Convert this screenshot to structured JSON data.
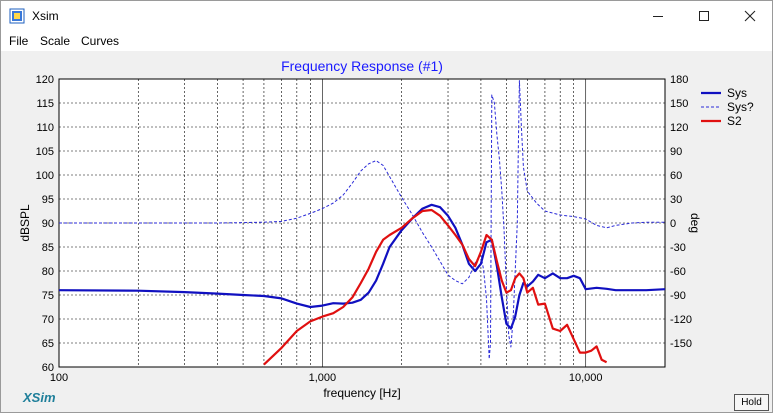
{
  "window": {
    "title": "Xsim",
    "icon": "xsim-app-icon"
  },
  "menu": [
    "File",
    "Scale",
    "Curves"
  ],
  "logo": "XSim",
  "hold_label": "Hold",
  "chart_data": {
    "type": "line",
    "title": "Frequency Response (#1)",
    "xlabel": "frequency [Hz]",
    "ylabel": "dBSPL",
    "y2label": "deg",
    "xscale": "log",
    "xlim": [
      100,
      20000
    ],
    "ylim": [
      60,
      120
    ],
    "y2lim": [
      -180,
      180
    ],
    "grid": true,
    "legend": "top-right",
    "x_tick_labels": [
      {
        "x": 100,
        "label": "100"
      },
      {
        "x": 1000,
        "label": "1,000"
      },
      {
        "x": 10000,
        "label": "10,000"
      }
    ],
    "y_ticks": [
      60,
      65,
      70,
      75,
      80,
      85,
      90,
      95,
      100,
      105,
      110,
      115,
      120
    ],
    "y2_ticks": [
      -150,
      -120,
      -90,
      -60,
      -30,
      0,
      30,
      60,
      90,
      120,
      150,
      180
    ],
    "colors": {
      "title": "#1a1aff",
      "sys": "#1010c0",
      "phase": "#2a2ad8",
      "s2": "#e01010"
    },
    "series": [
      {
        "name": "Sys",
        "axis": "left",
        "style": "solid-bold",
        "x": [
          100,
          200,
          300,
          400,
          500,
          600,
          700,
          800,
          900,
          1000,
          1100,
          1200,
          1300,
          1400,
          1500,
          1600,
          1700,
          1800,
          2000,
          2200,
          2400,
          2600,
          2800,
          3000,
          3200,
          3400,
          3600,
          3800,
          4000,
          4200,
          4400,
          4600,
          4800,
          5000,
          5200,
          5400,
          5600,
          5800,
          6000,
          6300,
          6600,
          7000,
          7500,
          8000,
          8500,
          9000,
          9500,
          10000,
          11000,
          12000,
          13000,
          15000,
          17000,
          20000
        ],
        "y": [
          76,
          75.9,
          75.6,
          75.3,
          75,
          74.8,
          74.3,
          73.2,
          72.5,
          72.8,
          73.3,
          73.2,
          73.4,
          74,
          75.5,
          78,
          81.5,
          85,
          88.5,
          91,
          93,
          93.8,
          93.3,
          91.5,
          89,
          85.5,
          81.5,
          80,
          81.5,
          86,
          86.5,
          81,
          74.5,
          69,
          68,
          70.5,
          75,
          77.5,
          76.8,
          77.8,
          79.2,
          78.5,
          79.5,
          78.5,
          78.5,
          79,
          78.5,
          76.2,
          76.5,
          76.3,
          76,
          76,
          76,
          76.2
        ]
      },
      {
        "name": "Sys?",
        "axis": "right",
        "style": "dashed",
        "x": [
          100,
          200,
          300,
          400,
          500,
          600,
          700,
          800,
          900,
          1000,
          1100,
          1200,
          1300,
          1400,
          1500,
          1600,
          1700,
          1800,
          2000,
          2200,
          2400,
          2600,
          2800,
          3000,
          3200,
          3400,
          3600,
          3800,
          4000,
          4100,
          4200,
          4300,
          4350,
          4400,
          4500,
          4600,
          4700,
          4800,
          4900,
          5000,
          5100,
          5200,
          5300,
          5400,
          5500,
          5550,
          5600,
          5700,
          5800,
          6000,
          6500,
          7000,
          8000,
          9000,
          10000,
          11000,
          12000,
          13000,
          15000,
          17000,
          20000
        ],
        "y": [
          0,
          0,
          0,
          0,
          0.5,
          1,
          2,
          6,
          12,
          18,
          25,
          35,
          50,
          65,
          74,
          78,
          72,
          58,
          32,
          10,
          -12,
          -30,
          -48,
          -65,
          -72,
          -76,
          -68,
          -50,
          -38,
          -60,
          -95,
          -170,
          -150,
          160,
          150,
          110,
          80,
          40,
          -10,
          -80,
          -140,
          -155,
          -120,
          -60,
          0,
          100,
          178,
          120,
          70,
          40,
          25,
          15,
          10,
          8,
          5,
          -3,
          -6,
          -3,
          0,
          1,
          1
        ]
      },
      {
        "name": "S2",
        "axis": "left",
        "style": "solid-bold",
        "x": [
          600,
          700,
          800,
          900,
          1000,
          1100,
          1200,
          1300,
          1400,
          1500,
          1600,
          1700,
          1800,
          2000,
          2200,
          2400,
          2600,
          2800,
          3000,
          3200,
          3400,
          3600,
          3800,
          4000,
          4200,
          4400,
          4600,
          4800,
          5000,
          5200,
          5400,
          5600,
          5800,
          6000,
          6300,
          6600,
          7000,
          7500,
          8000,
          8500,
          9000,
          9500,
          10000,
          10500,
          11000,
          11500,
          12000
        ],
        "y": [
          60.5,
          64,
          67.5,
          69.5,
          70.5,
          71.2,
          72.5,
          74.5,
          77.5,
          80.5,
          84,
          86.5,
          87.5,
          89,
          91,
          92.5,
          92.7,
          91.5,
          89.5,
          87.5,
          85.5,
          82.5,
          81,
          84,
          87.5,
          86.5,
          82,
          78,
          75.5,
          76,
          78.5,
          79.5,
          78.5,
          75.5,
          76.5,
          73,
          73.2,
          68,
          67.5,
          68.8,
          65.8,
          63,
          63,
          63.4,
          64.3,
          61.5,
          61
        ]
      }
    ]
  }
}
